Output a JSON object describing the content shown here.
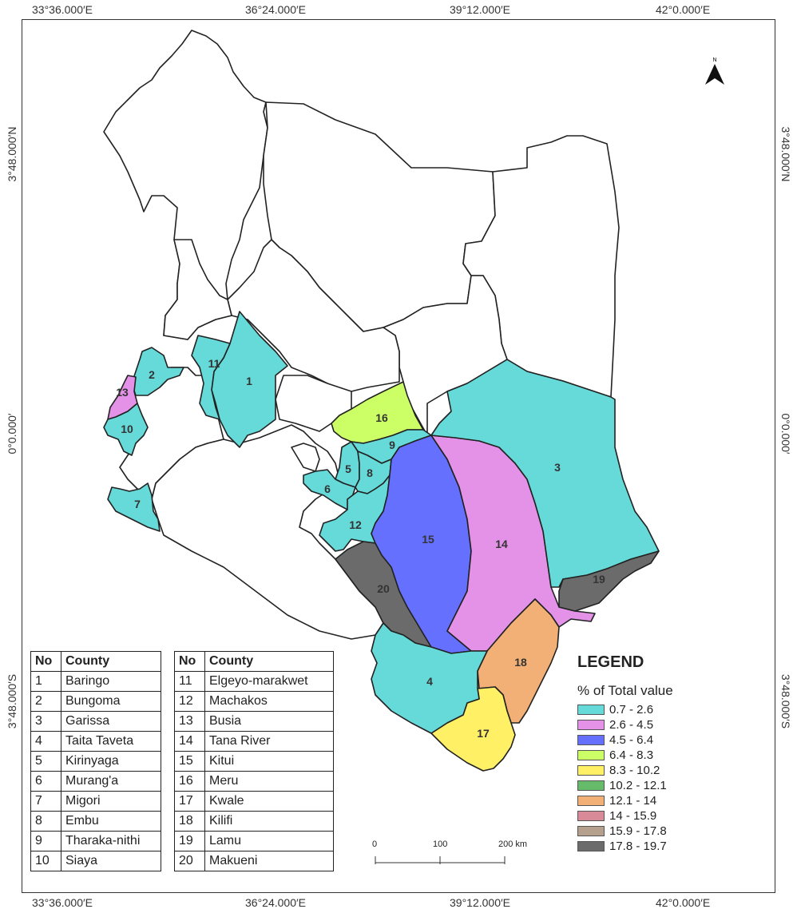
{
  "coords": {
    "top": [
      "33°36.000′E",
      "36°24.000′E",
      "39°12.000′E",
      "42°0.000′E"
    ],
    "bottom": [
      "33°36.000′E",
      "36°24.000′E",
      "39°12.000′E",
      "42°0.000′E"
    ],
    "left": [
      "3°48.000′N",
      "0°0.000′",
      "3°48.000′S"
    ],
    "right": [
      "3°48.000′N",
      "0°0.000′",
      "3°48.000′S"
    ]
  },
  "north_label": "N",
  "table1": {
    "header_no": "No",
    "header_county": "County",
    "rows": [
      {
        "no": "1",
        "county": "Baringo"
      },
      {
        "no": "2",
        "county": "Bungoma"
      },
      {
        "no": "3",
        "county": "Garissa"
      },
      {
        "no": "4",
        "county": "Taita Taveta"
      },
      {
        "no": "5",
        "county": "Kirinyaga"
      },
      {
        "no": "6",
        "county": "Murang'a"
      },
      {
        "no": "7",
        "county": "Migori"
      },
      {
        "no": "8",
        "county": "Embu"
      },
      {
        "no": "9",
        "county": "Tharaka-nithi"
      },
      {
        "no": "10",
        "county": "Siaya"
      }
    ]
  },
  "table2": {
    "header_no": "No",
    "header_county": "County",
    "rows": [
      {
        "no": "11",
        "county": "Elgeyo-marakwet"
      },
      {
        "no": "12",
        "county": "Machakos"
      },
      {
        "no": "13",
        "county": "Busia"
      },
      {
        "no": "14",
        "county": "Tana River"
      },
      {
        "no": "15",
        "county": "Kitui"
      },
      {
        "no": "16",
        "county": "Meru"
      },
      {
        "no": "17",
        "county": "Kwale"
      },
      {
        "no": "18",
        "county": "Kilifi"
      },
      {
        "no": "19",
        "county": "Lamu"
      },
      {
        "no": "20",
        "county": "Makueni"
      }
    ]
  },
  "legend": {
    "title": "LEGEND",
    "subtitle": "% of Total value",
    "classes": [
      {
        "label": "0.7 - 2.6",
        "color": "#66d9d9"
      },
      {
        "label": "2.6 - 4.5",
        "color": "#e392e8"
      },
      {
        "label": "4.5 - 6.4",
        "color": "#6670ff"
      },
      {
        "label": "6.4 - 8.3",
        "color": "#ccff66"
      },
      {
        "label": "8.3 - 10.2",
        "color": "#fff066"
      },
      {
        "label": "10.2 - 12.1",
        "color": "#66bb6a"
      },
      {
        "label": "12.1 - 14",
        "color": "#f2b076"
      },
      {
        "label": "14 - 15.9",
        "color": "#d98a99"
      },
      {
        "label": "15.9 - 17.8",
        "color": "#b5a08e"
      },
      {
        "label": "17.8 - 19.7",
        "color": "#6b6b6b"
      }
    ]
  },
  "scale": {
    "ticks": [
      "0",
      "100",
      "200 km"
    ]
  },
  "map_labels": [
    "1",
    "2",
    "3",
    "4",
    "5",
    "6",
    "7",
    "8",
    "9",
    "10",
    "11",
    "12",
    "13",
    "14",
    "15",
    "16",
    "17",
    "18",
    "19",
    "20"
  ]
}
